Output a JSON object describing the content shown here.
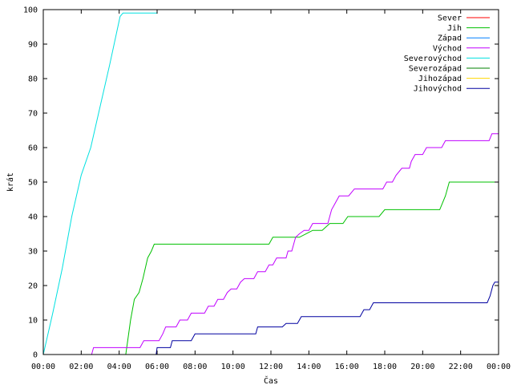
{
  "chart_data": {
    "type": "line",
    "xlabel": "Čas",
    "ylabel": "krát",
    "xlim": [
      0,
      24
    ],
    "ylim": [
      0,
      100
    ],
    "x_ticks": [
      {
        "value": 0,
        "label": "00:00"
      },
      {
        "value": 2,
        "label": "02:00"
      },
      {
        "value": 4,
        "label": "04:00"
      },
      {
        "value": 6,
        "label": "06:00"
      },
      {
        "value": 8,
        "label": "08:00"
      },
      {
        "value": 10,
        "label": "10:00"
      },
      {
        "value": 12,
        "label": "12:00"
      },
      {
        "value": 14,
        "label": "14:00"
      },
      {
        "value": 16,
        "label": "16:00"
      },
      {
        "value": 18,
        "label": "18:00"
      },
      {
        "value": 20,
        "label": "20:00"
      },
      {
        "value": 22,
        "label": "22:00"
      },
      {
        "value": 24,
        "label": "00:00"
      }
    ],
    "y_ticks": [
      0,
      10,
      20,
      30,
      40,
      50,
      60,
      70,
      80,
      90,
      100
    ],
    "grid": false,
    "legend_position": "top-right",
    "series": [
      {
        "name": "Sever",
        "color": "#ff0000",
        "points": []
      },
      {
        "name": "Jih",
        "color": "#00c000",
        "points": [
          [
            4.35,
            0
          ],
          [
            4.6,
            10
          ],
          [
            4.8,
            16
          ],
          [
            5.05,
            18
          ],
          [
            5.25,
            22
          ],
          [
            5.5,
            28
          ],
          [
            5.7,
            30
          ],
          [
            5.85,
            32
          ],
          [
            11.9,
            32
          ],
          [
            12.1,
            34
          ],
          [
            13.5,
            34
          ],
          [
            14.2,
            36
          ],
          [
            14.7,
            36
          ],
          [
            15.1,
            38
          ],
          [
            15.8,
            38
          ],
          [
            16.05,
            40
          ],
          [
            17.7,
            40
          ],
          [
            18.0,
            42
          ],
          [
            20.9,
            42
          ],
          [
            21.2,
            46
          ],
          [
            21.4,
            50
          ],
          [
            24,
            50
          ]
        ]
      },
      {
        "name": "Západ",
        "color": "#0080ff",
        "points": []
      },
      {
        "name": "Východ",
        "color": "#c000ff",
        "points": [
          [
            2.55,
            0
          ],
          [
            2.65,
            2
          ],
          [
            5.1,
            2
          ],
          [
            5.3,
            4
          ],
          [
            6.1,
            4
          ],
          [
            6.3,
            6
          ],
          [
            6.45,
            8
          ],
          [
            7.0,
            8
          ],
          [
            7.2,
            10
          ],
          [
            7.6,
            10
          ],
          [
            7.8,
            12
          ],
          [
            8.5,
            12
          ],
          [
            8.7,
            14
          ],
          [
            9.0,
            14
          ],
          [
            9.2,
            16
          ],
          [
            9.5,
            16
          ],
          [
            9.7,
            18
          ],
          [
            9.9,
            19
          ],
          [
            10.2,
            19
          ],
          [
            10.4,
            21
          ],
          [
            10.6,
            22
          ],
          [
            11.1,
            22
          ],
          [
            11.3,
            24
          ],
          [
            11.7,
            24
          ],
          [
            11.9,
            26
          ],
          [
            12.1,
            26
          ],
          [
            12.3,
            28
          ],
          [
            12.8,
            28
          ],
          [
            12.9,
            30
          ],
          [
            13.1,
            30
          ],
          [
            13.3,
            34
          ],
          [
            13.5,
            35
          ],
          [
            13.75,
            36
          ],
          [
            14.0,
            36
          ],
          [
            14.2,
            38
          ],
          [
            15.0,
            38
          ],
          [
            15.2,
            42
          ],
          [
            15.4,
            44
          ],
          [
            15.6,
            46
          ],
          [
            16.1,
            46
          ],
          [
            16.4,
            48
          ],
          [
            17.9,
            48
          ],
          [
            18.1,
            50
          ],
          [
            18.4,
            50
          ],
          [
            18.6,
            52
          ],
          [
            18.9,
            54
          ],
          [
            19.3,
            54
          ],
          [
            19.4,
            56
          ],
          [
            19.6,
            58
          ],
          [
            20.0,
            58
          ],
          [
            20.2,
            60
          ],
          [
            21.0,
            60
          ],
          [
            21.2,
            62
          ],
          [
            23.5,
            62
          ],
          [
            23.65,
            64
          ],
          [
            24,
            64
          ]
        ]
      },
      {
        "name": "Severovýchod",
        "color": "#00e0e0",
        "points": [
          [
            0.0,
            0
          ],
          [
            0.5,
            12
          ],
          [
            1.0,
            25
          ],
          [
            1.5,
            40
          ],
          [
            2.0,
            52
          ],
          [
            2.5,
            60
          ],
          [
            3.0,
            72
          ],
          [
            3.5,
            84
          ],
          [
            4.05,
            98
          ],
          [
            4.2,
            99
          ],
          [
            6.0,
            99
          ]
        ]
      },
      {
        "name": "Severozápad",
        "color": "#008000",
        "points": []
      },
      {
        "name": "Jihozápad",
        "color": "#ffd700",
        "points": []
      },
      {
        "name": "Jihovýchod",
        "color": "#0000a0",
        "points": [
          [
            5.95,
            0
          ],
          [
            6.0,
            2
          ],
          [
            6.7,
            2
          ],
          [
            6.8,
            4
          ],
          [
            7.8,
            4
          ],
          [
            8.0,
            6
          ],
          [
            11.2,
            6
          ],
          [
            11.3,
            8
          ],
          [
            12.6,
            8
          ],
          [
            12.8,
            9
          ],
          [
            13.4,
            9
          ],
          [
            13.6,
            11
          ],
          [
            16.7,
            11
          ],
          [
            16.9,
            13
          ],
          [
            17.2,
            13
          ],
          [
            17.4,
            15
          ],
          [
            23.4,
            15
          ],
          [
            23.55,
            17
          ],
          [
            23.7,
            20
          ],
          [
            23.8,
            21
          ],
          [
            24,
            21
          ]
        ]
      }
    ]
  }
}
